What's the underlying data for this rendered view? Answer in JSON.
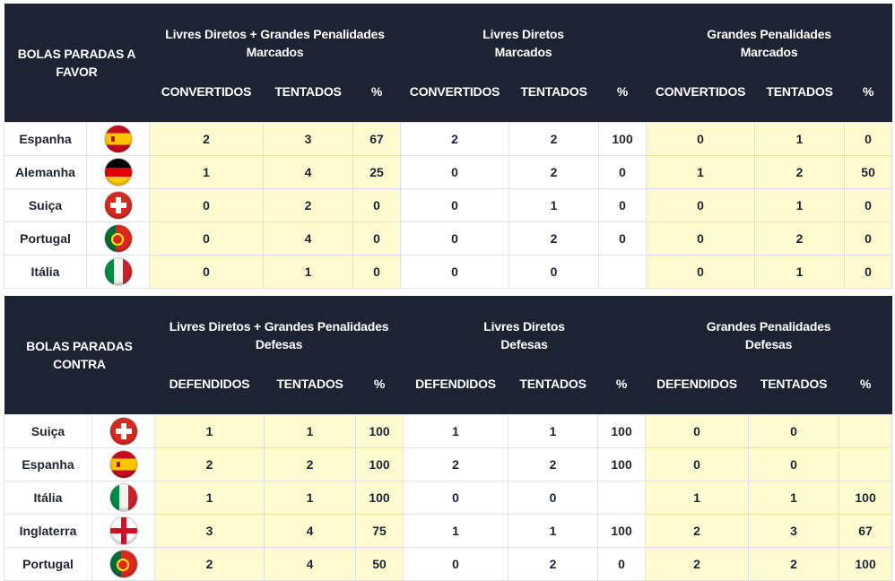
{
  "favor": {
    "title": "BOLAS PARADAS A FAVOR",
    "groups": [
      {
        "line1": "Livres Diretos + Grandes Penalidades",
        "line2": "Marcados"
      },
      {
        "line1": "Livres Diretos",
        "line2": "Marcados"
      },
      {
        "line1": "Grandes Penalidades",
        "line2": "Marcados"
      }
    ],
    "cols": [
      "CONVERTIDOS",
      "TENTADOS",
      "%"
    ],
    "rows": [
      {
        "team": "Espanha",
        "flag": "spain-flag-icon",
        "v": [
          "2",
          "3",
          "67",
          "2",
          "2",
          "100",
          "0",
          "1",
          "0"
        ]
      },
      {
        "team": "Alemanha",
        "flag": "germany-flag-icon",
        "v": [
          "1",
          "4",
          "25",
          "0",
          "2",
          "0",
          "1",
          "2",
          "50"
        ]
      },
      {
        "team": "Suiça",
        "flag": "switzerland-flag-icon",
        "v": [
          "0",
          "2",
          "0",
          "0",
          "1",
          "0",
          "0",
          "1",
          "0"
        ]
      },
      {
        "team": "Portugal",
        "flag": "portugal-flag-icon",
        "v": [
          "0",
          "4",
          "0",
          "0",
          "2",
          "0",
          "0",
          "2",
          "0"
        ]
      },
      {
        "team": "Itália",
        "flag": "italy-flag-icon",
        "v": [
          "0",
          "1",
          "0",
          "0",
          "0",
          "",
          "0",
          "1",
          "0"
        ]
      }
    ]
  },
  "contra": {
    "title": "BOLAS PARADAS CONTRA",
    "groups": [
      {
        "line1": "Livres Diretos + Grandes Penalidades",
        "line2": "Defesas"
      },
      {
        "line1": "Livres Diretos",
        "line2": "Defesas"
      },
      {
        "line1": "Grandes Penalidades",
        "line2": "Defesas"
      }
    ],
    "cols": [
      "DEFENDIDOS",
      "TENTADOS",
      "%"
    ],
    "rows": [
      {
        "team": "Suiça",
        "flag": "switzerland-flag-icon",
        "v": [
          "1",
          "1",
          "100",
          "1",
          "1",
          "100",
          "0",
          "0",
          ""
        ]
      },
      {
        "team": "Espanha",
        "flag": "spain-flag-icon",
        "v": [
          "2",
          "2",
          "100",
          "2",
          "2",
          "100",
          "0",
          "0",
          ""
        ]
      },
      {
        "team": "Itália",
        "flag": "italy-flag-icon",
        "v": [
          "1",
          "1",
          "100",
          "0",
          "0",
          "",
          "1",
          "1",
          "100"
        ]
      },
      {
        "team": "Inglaterra",
        "flag": "england-flag-icon",
        "v": [
          "3",
          "4",
          "75",
          "1",
          "1",
          "100",
          "2",
          "3",
          "67"
        ]
      },
      {
        "team": "Portugal",
        "flag": "portugal-flag-icon",
        "v": [
          "2",
          "4",
          "50",
          "0",
          "2",
          "0",
          "2",
          "2",
          "100"
        ]
      }
    ]
  }
}
